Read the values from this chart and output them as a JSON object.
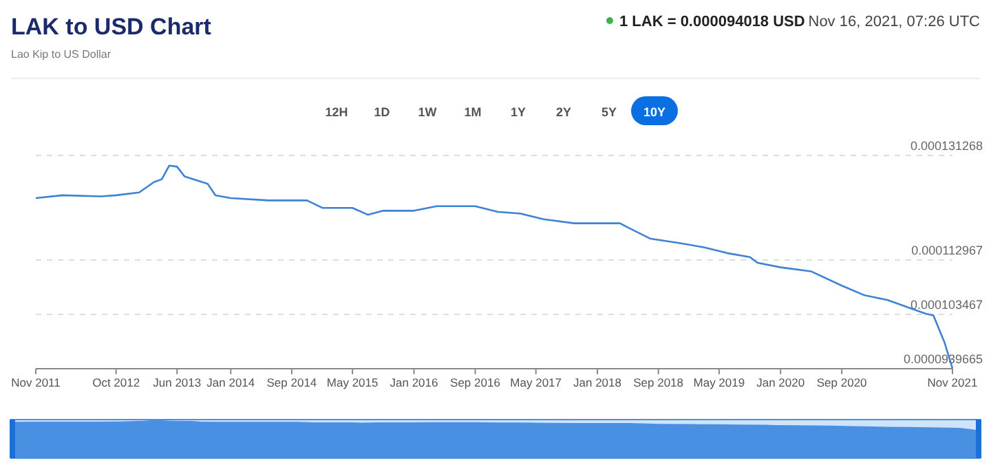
{
  "chart_data": {
    "type": "line",
    "title": "LAK to USD Chart",
    "subtitle": "Lao Kip to US Dollar",
    "annotations": [
      "1 LAK = 0.000094018 USD",
      "Nov 16, 2021, 07:26 UTC",
      "12H",
      "1D",
      "1W",
      "1M",
      "1Y",
      "2Y",
      "5Y",
      "10Y"
    ],
    "x": [
      "2011-11-16",
      "2012-03",
      "2012-08",
      "2012-10",
      "2013-01",
      "2013-03",
      "2013-04",
      "2013-05",
      "2013-06",
      "2013-07",
      "2013-10",
      "2013-11",
      "2014-01",
      "2014-06",
      "2014-11",
      "2015-01",
      "2015-05",
      "2015-07",
      "2015-09",
      "2016-01",
      "2016-04",
      "2016-09",
      "2016-12",
      "2017-03",
      "2017-06",
      "2017-10",
      "2018-04",
      "2018-05",
      "2018-08",
      "2018-12",
      "2019-03",
      "2019-06",
      "2019-09",
      "2019-10",
      "2020-01",
      "2020-05",
      "2020-09",
      "2020-12",
      "2021-03",
      "2021-08",
      "2021-09",
      "2021-10-15",
      "2021-11-16"
    ],
    "series": [
      {
        "color": "#3d82d4",
        "values": [
          0.0001238,
          0.0001243,
          0.0001241,
          0.0001243,
          0.0001248,
          0.0001266,
          0.0001271,
          0.0001295,
          0.0001293,
          0.0001276,
          0.0001263,
          0.0001243,
          0.0001238,
          0.0001234,
          0.0001234,
          0.0001221,
          0.0001221,
          0.0001209,
          0.0001216,
          0.0001216,
          0.0001224,
          0.0001224,
          0.0001214,
          0.0001211,
          0.0001201,
          0.0001194,
          0.0001194,
          0.0001187,
          0.0001167,
          0.0001159,
          0.0001152,
          0.0001142,
          0.0001135,
          0.0001125,
          0.0001117,
          0.000111,
          0.0001085,
          0.0001068,
          0.000106,
          0.0001036,
          0.0001033,
          9.86e-05,
          9.4018e-05
        ]
      }
    ],
    "xlim": [
      "2011-11-16",
      "2021-11-16"
    ],
    "xticks": [
      {
        "value": "2011-11-16",
        "label": "Nov 2011"
      },
      {
        "value": "2012-10-01",
        "label": "Oct 2012"
      },
      {
        "value": "2013-06-01",
        "label": "Jun 2013"
      },
      {
        "value": "2014-01-01",
        "label": "Jan 2014"
      },
      {
        "value": "2014-09-01",
        "label": "Sep 2014"
      },
      {
        "value": "2015-05-01",
        "label": "May 2015"
      },
      {
        "value": "2016-01-01",
        "label": "Jan 2016"
      },
      {
        "value": "2016-09-01",
        "label": "Sep 2016"
      },
      {
        "value": "2017-05-01",
        "label": "May 2017"
      },
      {
        "value": "2018-01-01",
        "label": "Jan 2018"
      },
      {
        "value": "2018-09-01",
        "label": "Sep 2018"
      },
      {
        "value": "2019-05-01",
        "label": "May 2019"
      },
      {
        "value": "2020-01-01",
        "label": "Jan 2020"
      },
      {
        "value": "2020-09-01",
        "label": "Sep 2020"
      },
      {
        "value": "2021-11-16",
        "label": "Nov 2021"
      }
    ],
    "ylim": [
      9.39665e-05,
      0.000131268
    ],
    "yticks": [
      {
        "value": 9.39665e-05,
        "label": "0.0000939665"
      },
      {
        "value": 0.000103467,
        "label": "0.000103467"
      },
      {
        "value": 0.000112967,
        "label": "0.000112967"
      },
      {
        "value": 0.000131268,
        "label": "0.000131268"
      }
    ],
    "grid": "y"
  }
}
